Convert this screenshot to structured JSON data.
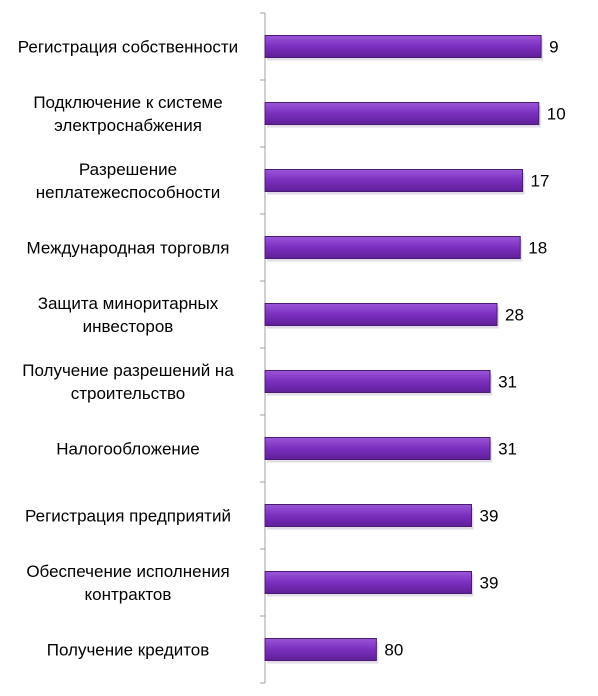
{
  "chart_data": {
    "type": "bar",
    "orientation": "horizontal",
    "x_axis": "reversed",
    "categories": [
      [
        "Регистрация собственности"
      ],
      [
        "Подключение к системе",
        "электроснабжения"
      ],
      [
        "Разрешение",
        "неплатежеспособности"
      ],
      [
        "Международная торговля"
      ],
      [
        "Защита миноритарных",
        "инвесторов"
      ],
      [
        "Получение разрешений  на",
        "строительство"
      ],
      [
        "Налогообложение"
      ],
      [
        "Регистрация предприятий"
      ],
      [
        "Обеспечение исполнения",
        "контрактов"
      ],
      [
        "Получение кредитов"
      ]
    ],
    "values": [
      9,
      10,
      17,
      18,
      28,
      31,
      31,
      39,
      39,
      80
    ],
    "xlim": [
      0,
      128
    ],
    "bar_color": "#7B2FBE",
    "bar_edge_color": "#4A1C70",
    "axis_color": "#A0A0A0",
    "grid": false,
    "legend": false
  }
}
